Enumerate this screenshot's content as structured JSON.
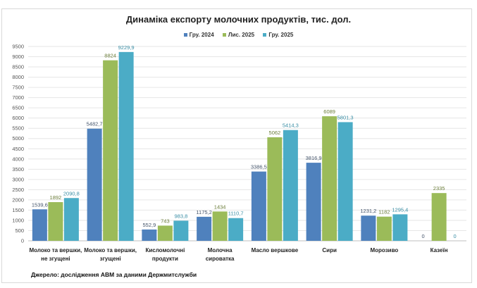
{
  "chart_data": {
    "type": "bar",
    "title": "Динаміка експорту молочних продуктів, тис. дол.",
    "categories": [
      [
        "Молоко та вершки,",
        "не згущені"
      ],
      [
        "Молоко та вершки,",
        "згущені"
      ],
      [
        "Кисломолочні",
        "продукти"
      ],
      [
        "Молочна",
        "сироватка"
      ],
      [
        "Масло вершкове"
      ],
      [
        "Сири"
      ],
      [
        "Морозиво"
      ],
      [
        "Казеїн"
      ]
    ],
    "series": [
      {
        "name": "Гру. 2024",
        "color": "#4f81bd",
        "label_color": "#44546a",
        "values": [
          1539.6,
          5482.7,
          552.9,
          1175.2,
          3386.5,
          3816.9,
          1231.2,
          0
        ],
        "labels": [
          "1539,6",
          "5482,7",
          "552,9",
          "1175,2",
          "3386,5",
          "3816,9",
          "1231,2",
          "0"
        ]
      },
      {
        "name": "Лис. 2025",
        "color": "#9bbb59",
        "label_color": "#6b7d3a",
        "values": [
          1892,
          8824,
          743,
          1434,
          5062,
          6089,
          1182,
          2335
        ],
        "labels": [
          "1892",
          "8824",
          "743",
          "1434",
          "5062",
          "6089",
          "1182",
          "2335"
        ]
      },
      {
        "name": "Гру. 2025",
        "color": "#4bacc6",
        "label_color": "#3a8ea5",
        "values": [
          2090.8,
          9229.9,
          983.8,
          1110.7,
          5414.3,
          5801.3,
          1295.4,
          0
        ],
        "labels": [
          "2090,8",
          "9229,9",
          "983,8",
          "1110,7",
          "5414,3",
          "5801,3",
          "1295,4",
          "0"
        ]
      }
    ],
    "yticks": [
      0,
      500,
      1000,
      1500,
      2000,
      2500,
      3000,
      3500,
      4000,
      4500,
      5000,
      5500,
      6000,
      6500,
      7000,
      7500,
      8000,
      8500,
      9000,
      9500
    ],
    "ylim": [
      0,
      9500
    ],
    "grid": true,
    "legend_position": "top"
  },
  "source": "Джерело: дослідження АВМ за даними Держмитслужби"
}
